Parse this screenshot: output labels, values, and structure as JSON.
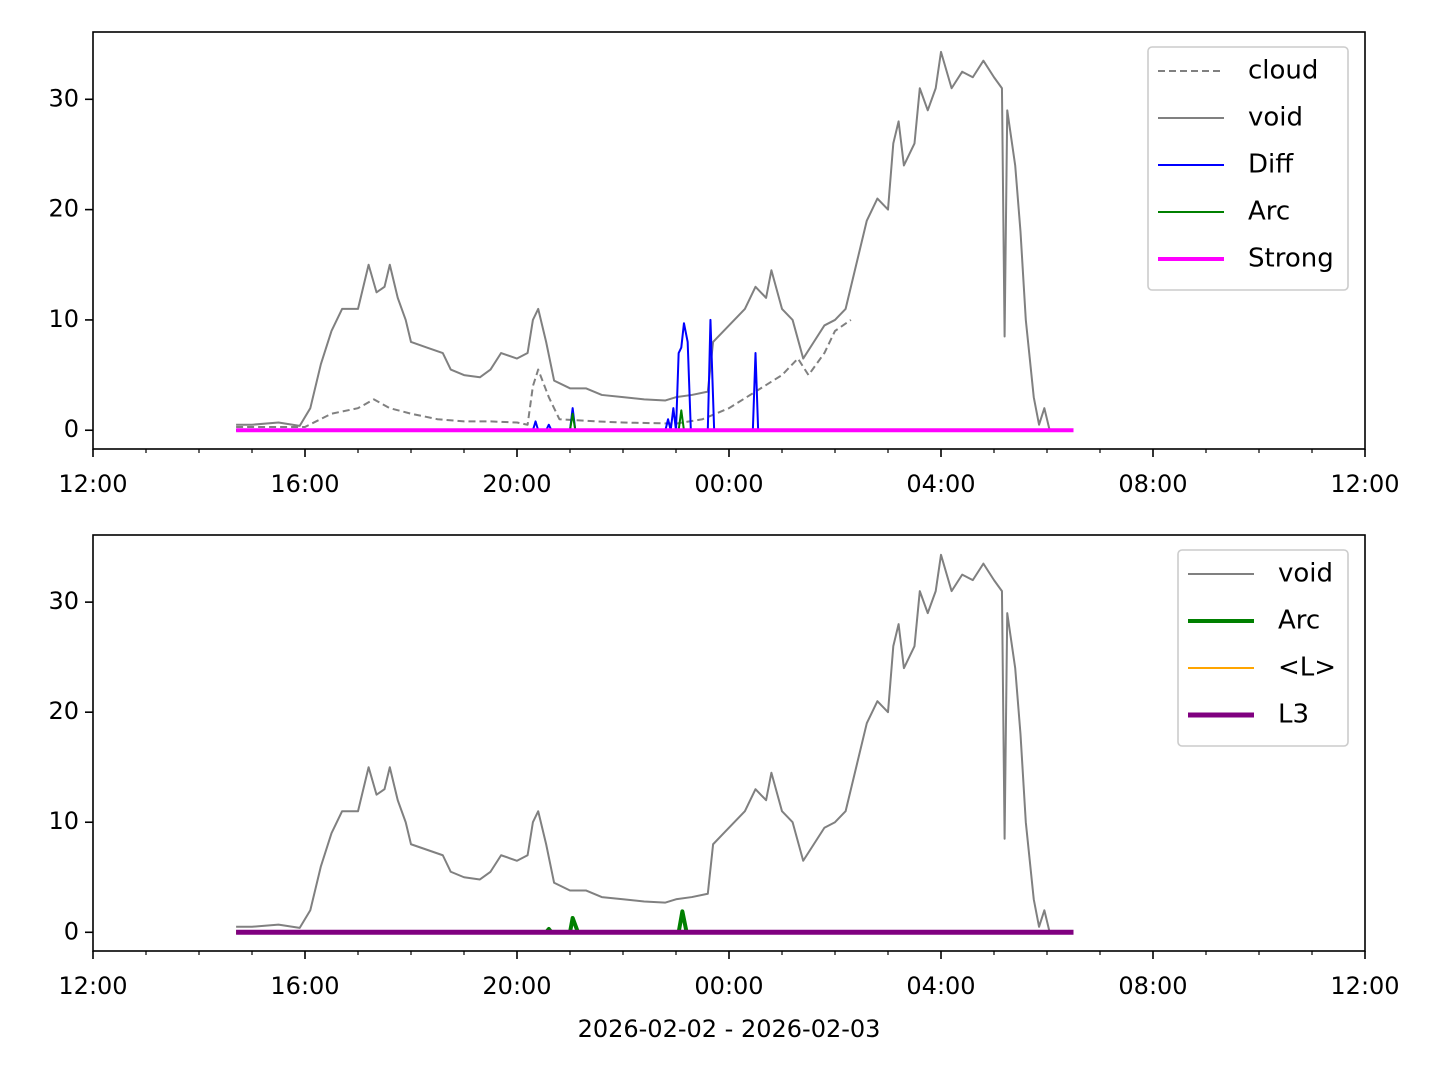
{
  "chart_data": [
    {
      "type": "line",
      "xlim": [
        12,
        36
      ],
      "ylim": [
        -1.7,
        36.1
      ],
      "xticks": [
        {
          "value": 12,
          "label": "12:00"
        },
        {
          "value": 16,
          "label": "16:00"
        },
        {
          "value": 20,
          "label": "20:00"
        },
        {
          "value": 24,
          "label": "00:00"
        },
        {
          "value": 28,
          "label": "04:00"
        },
        {
          "value": 32,
          "label": "08:00"
        },
        {
          "value": 36,
          "label": "12:00"
        }
      ],
      "xminorticks": [
        13,
        14,
        15,
        17,
        18,
        19,
        21,
        22,
        23,
        25,
        26,
        27,
        29,
        30,
        31,
        33,
        34,
        35
      ],
      "yticks": [
        0,
        10,
        20,
        30
      ],
      "legend": "upper right",
      "series": [
        {
          "name": "cloud",
          "color": "#808080",
          "style": "dashed",
          "width": 2,
          "x": [
            14.7,
            16,
            16.5,
            17,
            17.3,
            17.6,
            18,
            18.5,
            19,
            19.5,
            20,
            20.2,
            20.3,
            20.4,
            20.6,
            20.8,
            21.5,
            22,
            23,
            23.5,
            24,
            24.5,
            25,
            25.3,
            25.5,
            25.8,
            26,
            26.3
          ],
          "values": [
            0.3,
            0.3,
            1.5,
            2,
            2.8,
            2,
            1.5,
            1,
            0.8,
            0.8,
            0.7,
            0.5,
            4,
            5.5,
            3,
            1,
            0.8,
            0.7,
            0.6,
            1,
            2,
            3.5,
            5,
            6.5,
            5,
            7,
            9,
            10
          ]
        },
        {
          "name": "void",
          "color": "#808080",
          "style": "solid",
          "width": 2,
          "x": [
            14.7,
            15,
            15.5,
            15.9,
            16.1,
            16.3,
            16.5,
            16.7,
            17,
            17.2,
            17.35,
            17.5,
            17.6,
            17.75,
            17.9,
            18,
            18.3,
            18.6,
            18.75,
            19,
            19.3,
            19.5,
            19.7,
            20,
            20.2,
            20.3,
            20.4,
            20.55,
            20.7,
            21,
            21.3,
            21.6,
            22,
            22.4,
            22.8,
            23,
            23.3,
            23.6,
            23.7,
            23.9,
            24.1,
            24.3,
            24.5,
            24.7,
            24.8,
            25,
            25.2,
            25.4,
            25.6,
            25.8,
            26,
            26.2,
            26.4,
            26.6,
            26.8,
            27,
            27.1,
            27.2,
            27.3,
            27.5,
            27.6,
            27.75,
            27.9,
            28,
            28.2,
            28.4,
            28.6,
            28.8,
            29,
            29.15,
            29.2,
            29.25,
            29.4,
            29.5,
            29.6,
            29.75,
            29.85,
            29.95,
            30.05
          ],
          "values": [
            0.5,
            0.5,
            0.7,
            0.4,
            2,
            6,
            9,
            11,
            11,
            15,
            12.5,
            13,
            15,
            12,
            10,
            8,
            7.5,
            7,
            5.5,
            5,
            4.8,
            5.5,
            7,
            6.5,
            7,
            10,
            11,
            8,
            4.5,
            3.8,
            3.8,
            3.2,
            3,
            2.8,
            2.7,
            3,
            3.2,
            3.5,
            8,
            9,
            10,
            11,
            13,
            12,
            14.5,
            11,
            10,
            6.5,
            8,
            9.5,
            10,
            11,
            15,
            19,
            21,
            20,
            26,
            28,
            24,
            26,
            31,
            29,
            31,
            34.3,
            31,
            32.5,
            32,
            33.5,
            32,
            31,
            8.5,
            29,
            24,
            18,
            10,
            3,
            0.5,
            2,
            0
          ]
        },
        {
          "name": "Diff",
          "color": "#0000ff",
          "style": "solid",
          "width": 2,
          "x": [
            14.7,
            20.3,
            20.35,
            20.4,
            20.55,
            20.6,
            20.65,
            21,
            21.05,
            21.1,
            22.8,
            22.85,
            22.9,
            22.95,
            23,
            23.05,
            23.1,
            23.15,
            23.22,
            23.28,
            23.6,
            23.65,
            23.72,
            24.45,
            24.5,
            24.55
          ],
          "values": [
            0,
            0,
            0.8,
            0,
            0,
            0.5,
            0,
            0,
            2,
            0,
            0,
            1,
            0,
            2,
            0,
            7,
            7.5,
            9.7,
            8,
            0,
            0,
            10,
            0,
            0,
            7,
            0
          ]
        },
        {
          "name": "Arc",
          "color": "#008000",
          "style": "solid",
          "width": 2,
          "x": [
            14.7,
            21,
            21.05,
            21.1,
            23.05,
            23.1,
            23.15,
            30.5
          ],
          "values": [
            0,
            0,
            1.5,
            0,
            0,
            1.8,
            0,
            0
          ]
        },
        {
          "name": "Strong",
          "color": "#ff00ff",
          "style": "solid",
          "width": 4,
          "x": [
            14.7,
            30.5
          ],
          "values": [
            0,
            0
          ]
        }
      ]
    },
    {
      "type": "line",
      "xlabel": "2026-02-02 - 2026-02-03",
      "xlim": [
        12,
        36
      ],
      "ylim": [
        -1.7,
        36.1
      ],
      "xticks": [
        {
          "value": 12,
          "label": "12:00"
        },
        {
          "value": 16,
          "label": "16:00"
        },
        {
          "value": 20,
          "label": "20:00"
        },
        {
          "value": 24,
          "label": "00:00"
        },
        {
          "value": 28,
          "label": "04:00"
        },
        {
          "value": 32,
          "label": "08:00"
        },
        {
          "value": 36,
          "label": "12:00"
        }
      ],
      "xminorticks": [
        13,
        14,
        15,
        17,
        18,
        19,
        21,
        22,
        23,
        25,
        26,
        27,
        29,
        30,
        31,
        33,
        34,
        35
      ],
      "yticks": [
        0,
        10,
        20,
        30
      ],
      "legend": "upper right",
      "series": [
        {
          "name": "void",
          "color": "#808080",
          "style": "solid",
          "width": 2,
          "x": [
            14.7,
            15,
            15.5,
            15.9,
            16.1,
            16.3,
            16.5,
            16.7,
            17,
            17.2,
            17.35,
            17.5,
            17.6,
            17.75,
            17.9,
            18,
            18.3,
            18.6,
            18.75,
            19,
            19.3,
            19.5,
            19.7,
            20,
            20.2,
            20.3,
            20.4,
            20.55,
            20.7,
            21,
            21.3,
            21.6,
            22,
            22.4,
            22.8,
            23,
            23.3,
            23.6,
            23.7,
            23.9,
            24.1,
            24.3,
            24.5,
            24.7,
            24.8,
            25,
            25.2,
            25.4,
            25.6,
            25.8,
            26,
            26.2,
            26.4,
            26.6,
            26.8,
            27,
            27.1,
            27.2,
            27.3,
            27.5,
            27.6,
            27.75,
            27.9,
            28,
            28.2,
            28.4,
            28.6,
            28.8,
            29,
            29.15,
            29.2,
            29.25,
            29.4,
            29.5,
            29.6,
            29.75,
            29.85,
            29.95,
            30.05
          ],
          "values": [
            0.5,
            0.5,
            0.7,
            0.4,
            2,
            6,
            9,
            11,
            11,
            15,
            12.5,
            13,
            15,
            12,
            10,
            8,
            7.5,
            7,
            5.5,
            5,
            4.8,
            5.5,
            7,
            6.5,
            7,
            10,
            11,
            8,
            4.5,
            3.8,
            3.8,
            3.2,
            3,
            2.8,
            2.7,
            3,
            3.2,
            3.5,
            8,
            9,
            10,
            11,
            13,
            12,
            14.5,
            11,
            10,
            6.5,
            8,
            9.5,
            10,
            11,
            15,
            19,
            21,
            20,
            26,
            28,
            24,
            26,
            31,
            29,
            31,
            34.3,
            31,
            32.5,
            32,
            33.5,
            32,
            31,
            8.5,
            29,
            24,
            18,
            10,
            3,
            0.5,
            2,
            0
          ]
        },
        {
          "name": "Arc",
          "color": "#008000",
          "style": "solid",
          "width": 4,
          "x": [
            14.7,
            20.55,
            20.6,
            20.65,
            21,
            21.05,
            21.15,
            23.05,
            23.12,
            23.2,
            30.5
          ],
          "values": [
            0,
            0,
            0.3,
            0,
            0,
            1.3,
            0,
            0,
            1.9,
            0,
            0
          ]
        },
        {
          "name": "<L>",
          "color": "#ffa500",
          "style": "solid",
          "width": 2,
          "x": [
            14.7,
            30.5
          ],
          "values": [
            0,
            0
          ]
        },
        {
          "name": "L3",
          "color": "#800080",
          "style": "solid",
          "width": 5,
          "x": [
            14.7,
            30.5
          ],
          "values": [
            0,
            0
          ]
        }
      ]
    }
  ]
}
